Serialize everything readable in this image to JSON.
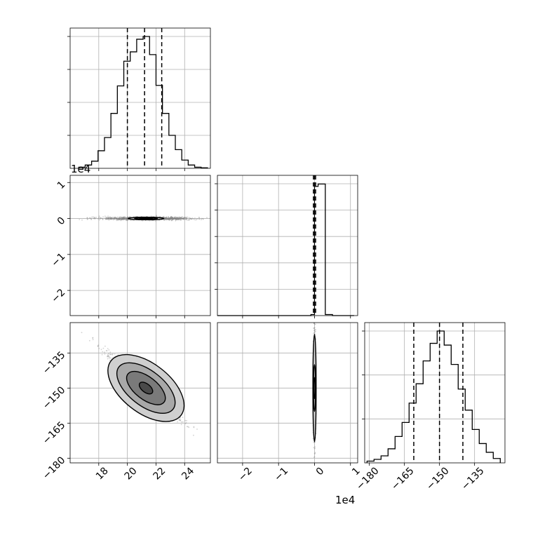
{
  "chart_data": {
    "type": "corner",
    "grid": true,
    "parameters": [
      {
        "index": 0,
        "range": [
          16.0,
          25.8
        ],
        "ticks": [
          18,
          20,
          22,
          24
        ],
        "tick_labels": [
          "18",
          "20",
          "22",
          "24"
        ],
        "offset_text": ""
      },
      {
        "index": 1,
        "range": [
          -27000,
          12000
        ],
        "ticks": [
          -20000,
          -10000,
          0,
          10000
        ],
        "tick_labels": [
          "−2",
          "−1",
          "0",
          "1"
        ],
        "offset_text": "1e4"
      },
      {
        "index": 2,
        "range": [
          -182,
          -122
        ],
        "ticks": [
          -180,
          -165,
          -150,
          -135
        ],
        "tick_labels": [
          "−180",
          "−165",
          "−150",
          "−135"
        ],
        "offset_text": ""
      }
    ],
    "quantiles": [
      {
        "param": 0,
        "values": [
          20.0,
          21.2,
          22.4
        ]
      },
      {
        "param": 1,
        "values": [
          -300,
          0,
          300
        ]
      },
      {
        "param": 2,
        "values": [
          -161,
          -150,
          -140
        ]
      }
    ],
    "histograms": [
      {
        "param": 0,
        "type": "step",
        "bin_edges": [
          16.6,
          17.05,
          17.5,
          17.95,
          18.4,
          18.85,
          19.3,
          19.75,
          20.2,
          20.65,
          21.1,
          21.55,
          22.0,
          22.45,
          22.9,
          23.35,
          23.8,
          24.25,
          24.7,
          25.15,
          25.6
        ],
        "counts": [
          2,
          6,
          13,
          32,
          56,
          100,
          150,
          195,
          212,
          235,
          240,
          207,
          151,
          100,
          60,
          34,
          15,
          6,
          2,
          1
        ],
        "ylim": [
          0,
          240
        ],
        "grid_values": [
          60,
          120,
          180,
          240
        ]
      },
      {
        "param": 1,
        "type": "step",
        "bin_edges": [
          -27000,
          -25000,
          -23000,
          -21000,
          -19000,
          -17000,
          -15000,
          -13000,
          -11000,
          -9000,
          -7000,
          -5000,
          -3000,
          -1000,
          0,
          1000,
          3000,
          5000,
          7000,
          9000,
          11000
        ],
        "counts": [
          0,
          0,
          0,
          0,
          0,
          0,
          0,
          0,
          0,
          0,
          0,
          0,
          0,
          8,
          980,
          998,
          8,
          0,
          0,
          0
        ],
        "ylim": [
          0,
          1000
        ],
        "grid_values": [
          200,
          400,
          600,
          800,
          1000
        ]
      },
      {
        "param": 2,
        "type": "step",
        "bin_edges": [
          -181,
          -178,
          -175,
          -172,
          -169,
          -166,
          -163,
          -160,
          -157,
          -154,
          -151,
          -148,
          -145,
          -142,
          -139,
          -136,
          -133,
          -130,
          -127,
          -124
        ],
        "counts": [
          2,
          4,
          8,
          16,
          30,
          46,
          68,
          90,
          116,
          136,
          150,
          134,
          112,
          84,
          60,
          38,
          22,
          12,
          5
        ],
        "ylim": [
          0,
          150
        ],
        "grid_values": [
          50,
          100,
          150
        ]
      }
    ],
    "contours_2d": [
      {
        "x_param": 0,
        "y_param": 1,
        "center": [
          21.3,
          0
        ],
        "scatter_spread": [
          1.55,
          600
        ],
        "levels": [
          {
            "rx": 1.25,
            "ry": 350,
            "angle_deg": 0
          },
          {
            "rx": 0.8,
            "ry": 220,
            "angle_deg": 0
          },
          {
            "rx": 0.45,
            "ry": 120,
            "angle_deg": 0
          }
        ]
      },
      {
        "x_param": 0,
        "y_param": 2,
        "center": [
          21.3,
          -150
        ],
        "scatter_spread": [
          1.55,
          10
        ],
        "levels": [
          {
            "rx": 3.1,
            "ry": 10.5,
            "angle_deg": -38
          },
          {
            "rx": 2.4,
            "ry": 7.5,
            "angle_deg": -38
          },
          {
            "rx": 1.6,
            "ry": 4.8,
            "angle_deg": -38
          },
          {
            "rx": 0.55,
            "ry": 1.8,
            "angle_deg": -38
          }
        ]
      },
      {
        "x_param": 1,
        "y_param": 2,
        "center": [
          0,
          -150
        ],
        "scatter_spread": [
          280,
          10
        ],
        "levels": [
          {
            "rx": 450,
            "ry": 23,
            "angle_deg": 0
          },
          {
            "rx": 300,
            "ry": 10,
            "angle_deg": 0
          },
          {
            "rx": 180,
            "ry": 4.5,
            "angle_deg": 0
          }
        ]
      }
    ],
    "colors": {
      "line": "#000000",
      "scatter": "#808080",
      "grid": "#b0b0b0",
      "density_dark": "#333333",
      "density_light": "#d0d0d0"
    }
  }
}
